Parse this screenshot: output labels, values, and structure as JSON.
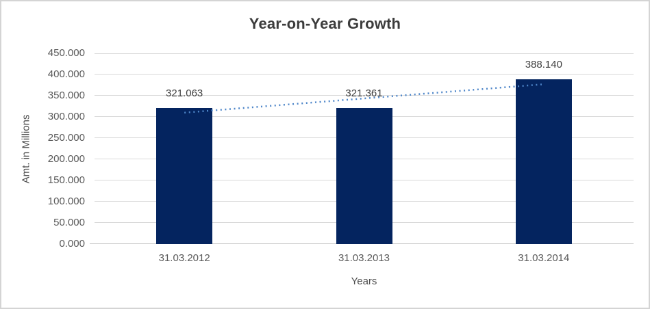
{
  "chart_data": {
    "type": "bar",
    "title": "Year-on-Year Growth",
    "xlabel": "Years",
    "ylabel": "Amt. in Millions",
    "categories": [
      "31.03.2012",
      "31.03.2013",
      "31.03.2014"
    ],
    "values": [
      321.063,
      321.361,
      388.14
    ],
    "data_labels": [
      "321.063",
      "321.361",
      "388.140"
    ],
    "ylim": [
      0,
      450
    ],
    "ytick_step": 50,
    "ytick_labels": [
      "0.000",
      "50.000",
      "100.000",
      "150.000",
      "200.000",
      "250.000",
      "300.000",
      "350.000",
      "400.000",
      "450.000"
    ],
    "grid": true,
    "legend": "none",
    "trendline": {
      "type": "linear",
      "style": "dotted",
      "color": "#4E86C9"
    },
    "colors": {
      "bar": "#04245F",
      "gridline": "#D9D9D9",
      "axis_line": "#C9C9C9",
      "title_text": "#3C3C3C",
      "axis_text": "#595959",
      "label_text": "#404040",
      "frame_border": "#D4D4D4",
      "background": "#FFFFFF"
    }
  }
}
